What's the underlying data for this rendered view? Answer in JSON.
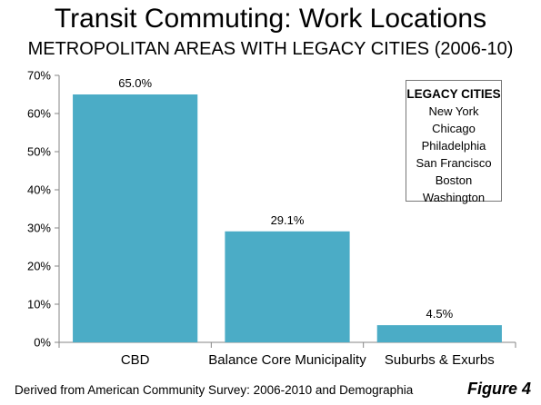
{
  "title": "Transit Commuting: Work Locations",
  "subtitle": "METROPOLITAN AREAS WITH LEGACY CITIES (2006-10)",
  "legend_box": {
    "title": "LEGACY CITIES",
    "items": [
      "New York",
      "Chicago",
      "Philadelphia",
      "San Francisco",
      "Boston",
      "Washington"
    ]
  },
  "source": "Derived from American Community Survey: 2006-2010 and Demographia",
  "figure_label": "Figure 4",
  "colors": {
    "bar": "#4BACC6",
    "axis": "#868686"
  },
  "chart_data": {
    "type": "bar",
    "categories": [
      "CBD",
      "Balance Core Municipality",
      "Suburbs & Exurbs"
    ],
    "values": [
      65.0,
      29.1,
      4.5
    ],
    "data_labels": [
      "65.0%",
      "29.1%",
      "4.5%"
    ],
    "ylim": [
      0,
      70
    ],
    "yticks": [
      0,
      10,
      20,
      30,
      40,
      50,
      60,
      70
    ],
    "ytick_labels": [
      "0%",
      "10%",
      "20%",
      "30%",
      "40%",
      "50%",
      "60%",
      "70%"
    ],
    "grid": false,
    "xlabel": "",
    "ylabel": ""
  }
}
